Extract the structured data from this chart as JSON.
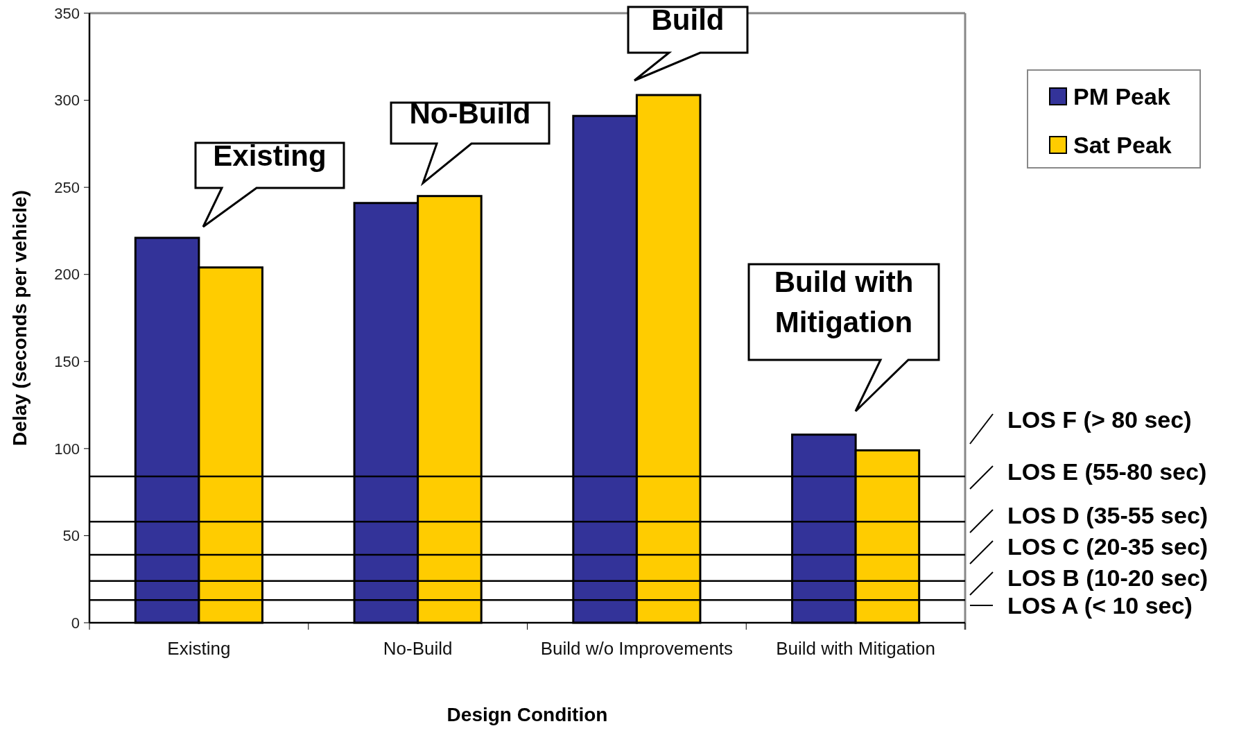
{
  "chart_data": {
    "type": "bar",
    "xlabel": "Design Condition",
    "ylabel": "Delay (seconds per vehicle)",
    "categories": [
      "Existing",
      "No-Build",
      "Build w/o Improvements",
      "Build with Mitigation"
    ],
    "series": [
      {
        "name": "PM Peak",
        "color": "#333399",
        "values": [
          221,
          241,
          291,
          108
        ]
      },
      {
        "name": "Sat Peak",
        "color": "#ffcc00",
        "values": [
          204,
          245,
          303,
          99
        ]
      }
    ],
    "ylim": [
      0,
      350
    ],
    "yticks": [
      0,
      50,
      100,
      150,
      200,
      250,
      300,
      350
    ],
    "grid": false,
    "legend": "top right",
    "ref_lines": [
      {
        "axis": "y",
        "value": 84,
        "color": "#000000"
      },
      {
        "axis": "y",
        "value": 58,
        "color": "#000000"
      },
      {
        "axis": "y",
        "value": 39,
        "color": "#000000"
      },
      {
        "axis": "y",
        "value": 24,
        "color": "#000000"
      },
      {
        "axis": "y",
        "value": 13,
        "color": "#000000"
      }
    ],
    "annotations": [
      "Existing",
      "No-Build",
      "Build",
      "Build with\nMitigation",
      "LOS F (> 80 sec)",
      "LOS E (55-80 sec)",
      "LOS D (35-55 sec)",
      "LOS C (20-35 sec)",
      "LOS B (10-20 sec)",
      "LOS A (< 10 sec)"
    ]
  }
}
